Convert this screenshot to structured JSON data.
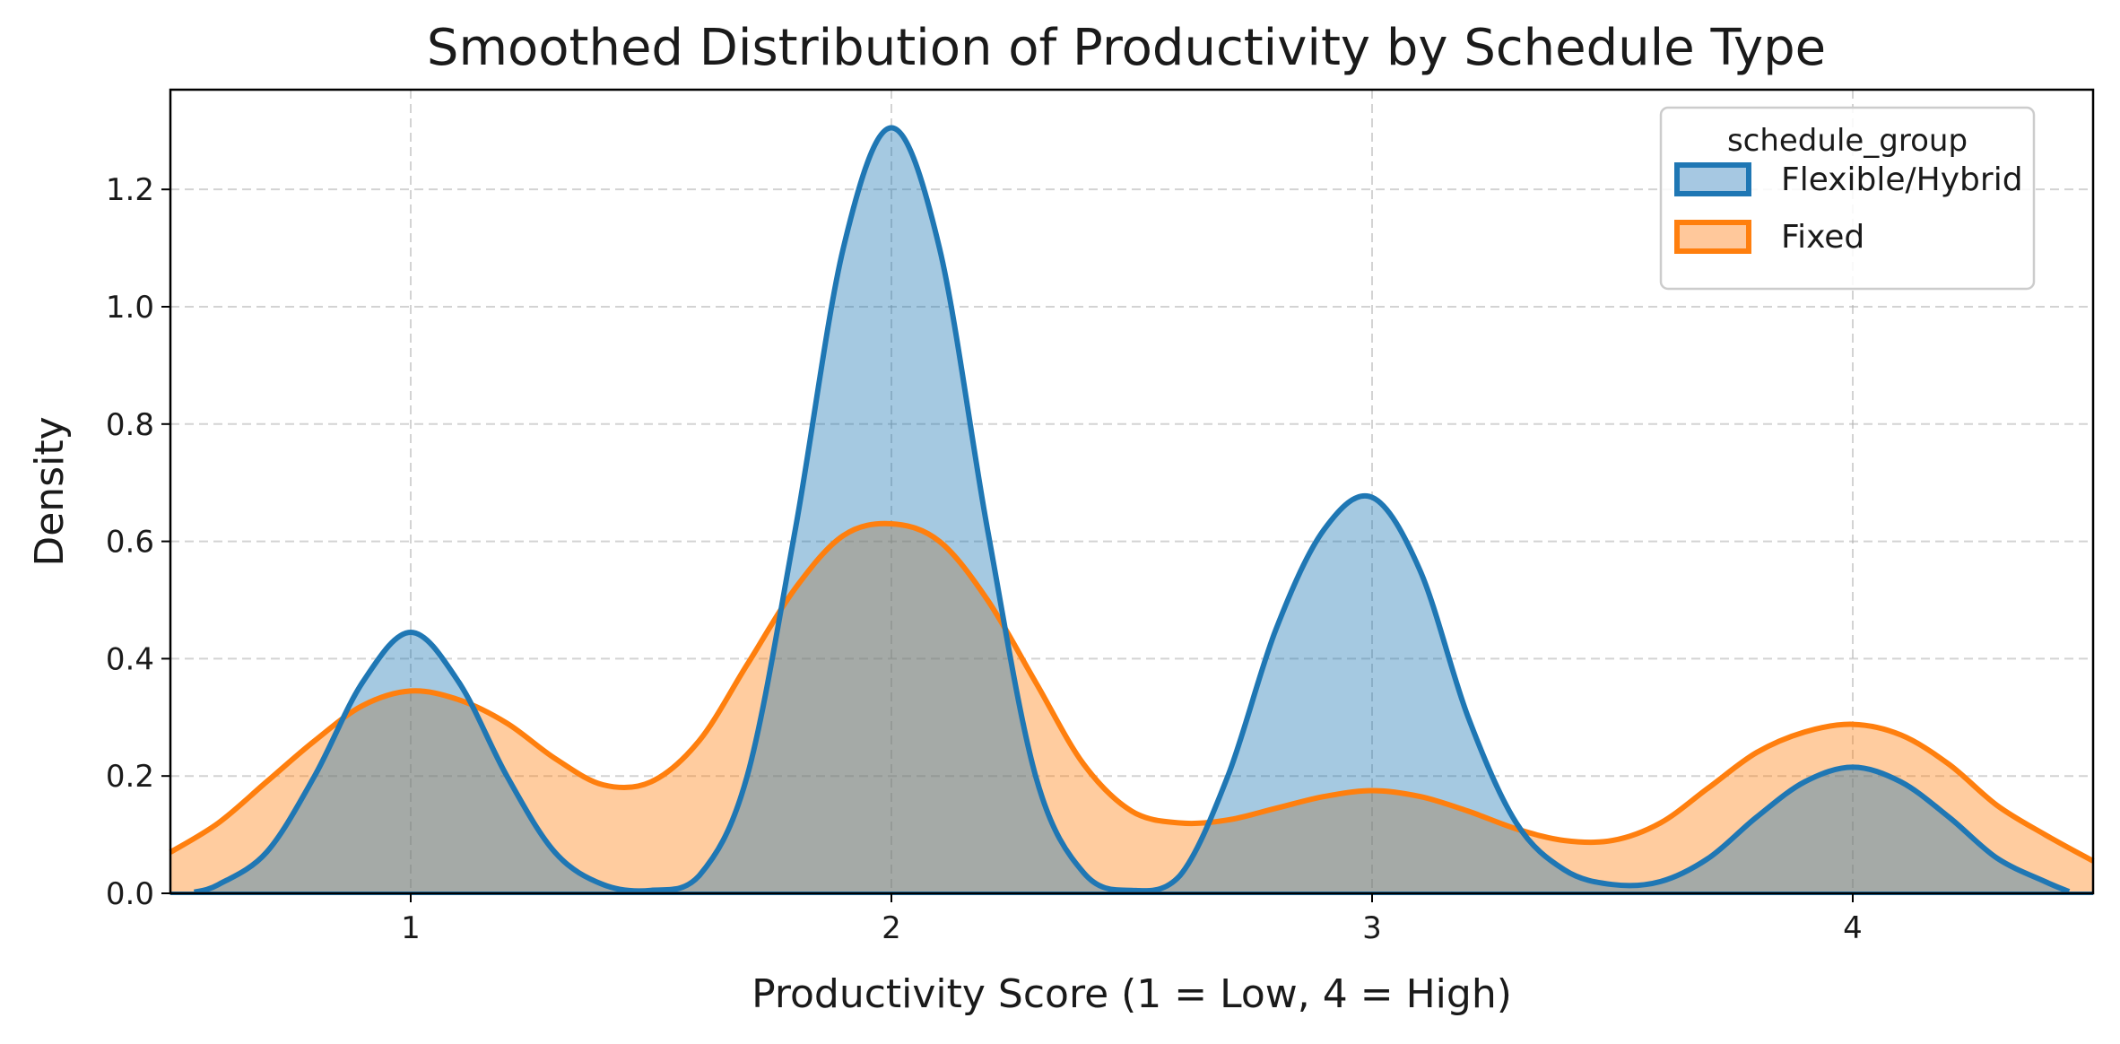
{
  "chart_data": {
    "type": "area",
    "title": "Smoothed Distribution of Productivity by Schedule Type",
    "xlabel": "Productivity Score (1 = Low, 4 = High)",
    "ylabel": "Density",
    "xlim": [
      0.5,
      4.5
    ],
    "ylim": [
      0.0,
      1.37
    ],
    "xticks": [
      1,
      2,
      3,
      4
    ],
    "xtick_labels": [
      "1",
      "2",
      "3",
      "4"
    ],
    "yticks": [
      0.0,
      0.2,
      0.4,
      0.6,
      0.8,
      1.0,
      1.2
    ],
    "ytick_labels": [
      "0.0",
      "0.2",
      "0.4",
      "0.6",
      "0.8",
      "1.0",
      "1.2"
    ],
    "grid": true,
    "legend": {
      "title": "schedule_group",
      "placement": "top-right"
    },
    "series": [
      {
        "name": "Flexible/Hybrid",
        "color": "#1f77b4",
        "fill": "#a6c8e2",
        "x": [
          0.55,
          0.6,
          0.7,
          0.8,
          0.9,
          1.0,
          1.1,
          1.2,
          1.3,
          1.4,
          1.5,
          1.6,
          1.7,
          1.8,
          1.9,
          2.0,
          2.1,
          2.2,
          2.3,
          2.4,
          2.5,
          2.6,
          2.7,
          2.8,
          2.9,
          3.0,
          3.1,
          3.2,
          3.3,
          3.4,
          3.5,
          3.6,
          3.7,
          3.8,
          3.9,
          4.0,
          4.1,
          4.2,
          4.3,
          4.4,
          4.45
        ],
        "y": [
          0.002,
          0.015,
          0.07,
          0.2,
          0.36,
          0.445,
          0.36,
          0.2,
          0.07,
          0.015,
          0.005,
          0.03,
          0.2,
          0.62,
          1.1,
          1.305,
          1.1,
          0.62,
          0.2,
          0.035,
          0.005,
          0.03,
          0.2,
          0.45,
          0.62,
          0.675,
          0.55,
          0.3,
          0.12,
          0.04,
          0.015,
          0.02,
          0.06,
          0.13,
          0.19,
          0.215,
          0.19,
          0.13,
          0.06,
          0.02,
          0.003
        ]
      },
      {
        "name": "Fixed",
        "color": "#ff7f0e",
        "fill": "#ffc89b",
        "x": [
          0.5,
          0.6,
          0.7,
          0.8,
          0.9,
          1.0,
          1.1,
          1.2,
          1.3,
          1.4,
          1.5,
          1.6,
          1.7,
          1.8,
          1.9,
          2.0,
          2.1,
          2.2,
          2.3,
          2.4,
          2.5,
          2.6,
          2.7,
          2.8,
          2.9,
          3.0,
          3.1,
          3.2,
          3.3,
          3.4,
          3.5,
          3.6,
          3.7,
          3.8,
          3.9,
          4.0,
          4.1,
          4.2,
          4.3,
          4.4,
          4.5
        ],
        "y": [
          0.07,
          0.12,
          0.19,
          0.26,
          0.32,
          0.345,
          0.33,
          0.29,
          0.23,
          0.185,
          0.19,
          0.26,
          0.39,
          0.52,
          0.61,
          0.63,
          0.6,
          0.5,
          0.36,
          0.22,
          0.14,
          0.12,
          0.125,
          0.145,
          0.165,
          0.175,
          0.165,
          0.14,
          0.11,
          0.09,
          0.09,
          0.12,
          0.18,
          0.24,
          0.275,
          0.288,
          0.27,
          0.22,
          0.15,
          0.1,
          0.055
        ]
      }
    ]
  }
}
